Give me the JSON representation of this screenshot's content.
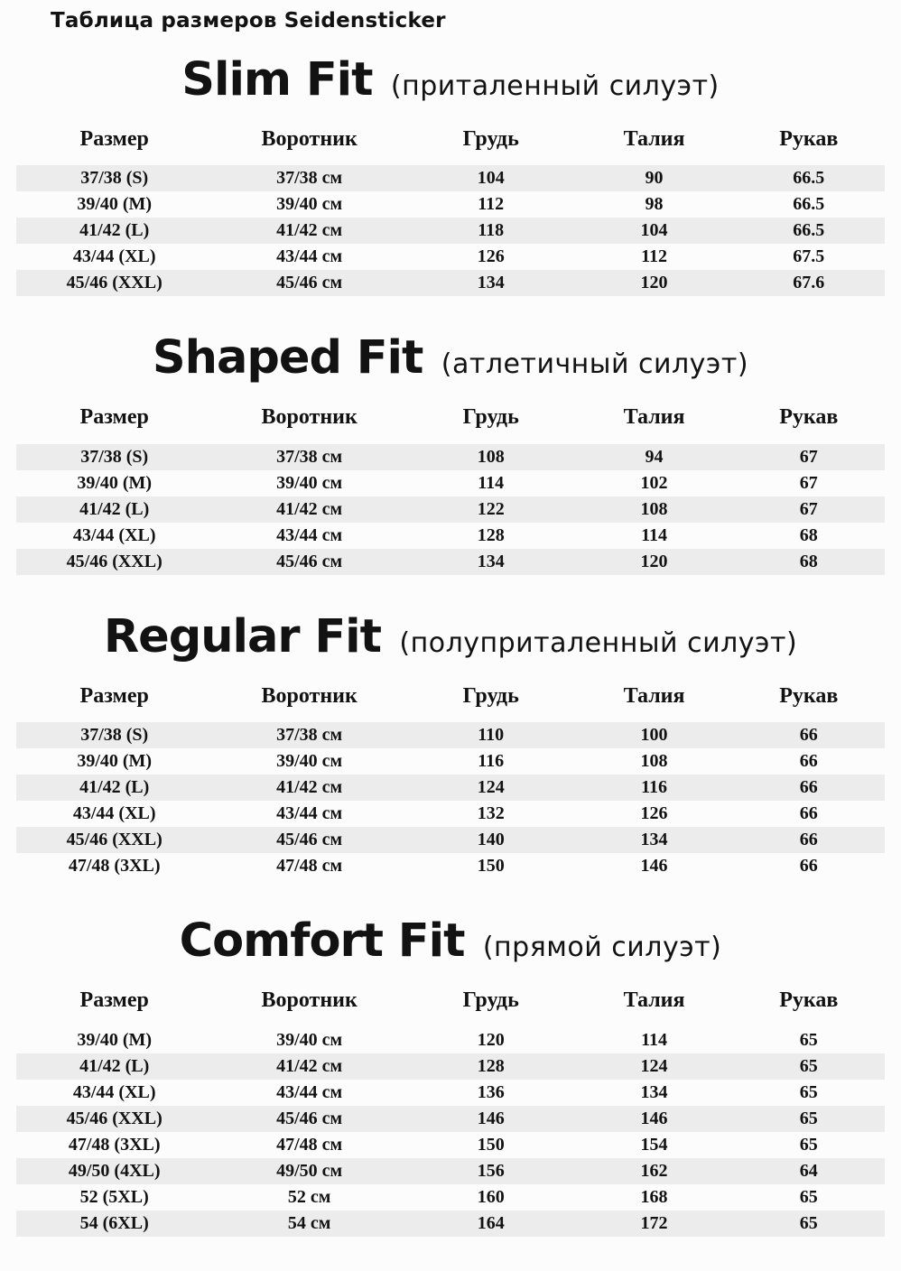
{
  "page_title": "Таблица размеров Seidensticker",
  "colors": {
    "background": "#fcfcfc",
    "row_stripe": "#ececec",
    "text": "#121212"
  },
  "columns": [
    "Размер",
    "Воротник",
    "Грудь",
    "Талия",
    "Рукав"
  ],
  "sections": [
    {
      "name": "Slim Fit",
      "subtitle": "(приталенный силуэт)",
      "stripe": "odd",
      "rows": [
        [
          "37/38 (S)",
          "37/38 см",
          "104",
          "90",
          "66.5"
        ],
        [
          "39/40 (M)",
          "39/40 см",
          "112",
          "98",
          "66.5"
        ],
        [
          "41/42 (L)",
          "41/42 см",
          "118",
          "104",
          "66.5"
        ],
        [
          "43/44 (XL)",
          "43/44 см",
          "126",
          "112",
          "67.5"
        ],
        [
          "45/46 (XXL)",
          "45/46 см",
          "134",
          "120",
          "67.6"
        ]
      ]
    },
    {
      "name": "Shaped Fit",
      "subtitle": "(атлетичный силуэт)",
      "stripe": "odd",
      "rows": [
        [
          "37/38 (S)",
          "37/38 см",
          "108",
          "94",
          "67"
        ],
        [
          "39/40 (M)",
          "39/40 см",
          "114",
          "102",
          "67"
        ],
        [
          "41/42 (L)",
          "41/42 см",
          "122",
          "108",
          "67"
        ],
        [
          "43/44 (XL)",
          "43/44 см",
          "128",
          "114",
          "68"
        ],
        [
          "45/46 (XXL)",
          "45/46 см",
          "134",
          "120",
          "68"
        ]
      ]
    },
    {
      "name": "Regular Fit",
      "subtitle": "(полуприталенный силуэт)",
      "stripe": "odd",
      "rows": [
        [
          "37/38 (S)",
          "37/38 см",
          "110",
          "100",
          "66"
        ],
        [
          "39/40 (M)",
          "39/40 см",
          "116",
          "108",
          "66"
        ],
        [
          "41/42 (L)",
          "41/42 см",
          "124",
          "116",
          "66"
        ],
        [
          "43/44 (XL)",
          "43/44 см",
          "132",
          "126",
          "66"
        ],
        [
          "45/46 (XXL)",
          "45/46 см",
          "140",
          "134",
          "66"
        ],
        [
          "47/48 (3XL)",
          "47/48 см",
          "150",
          "146",
          "66"
        ]
      ]
    },
    {
      "name": "Comfort Fit",
      "subtitle": "(прямой силуэт)",
      "stripe": "even",
      "rows": [
        [
          "39/40 (M)",
          "39/40 см",
          "120",
          "114",
          "65"
        ],
        [
          "41/42 (L)",
          "41/42 см",
          "128",
          "124",
          "65"
        ],
        [
          "43/44 (XL)",
          "43/44 см",
          "136",
          "134",
          "65"
        ],
        [
          "45/46 (XXL)",
          "45/46 см",
          "146",
          "146",
          "65"
        ],
        [
          "47/48 (3XL)",
          "47/48 см",
          "150",
          "154",
          "65"
        ],
        [
          "49/50 (4XL)",
          "49/50 см",
          "156",
          "162",
          "64"
        ],
        [
          "52 (5XL)",
          "52 см",
          "160",
          "168",
          "65"
        ],
        [
          "54 (6XL)",
          "54 см",
          "164",
          "172",
          "65"
        ]
      ]
    }
  ]
}
